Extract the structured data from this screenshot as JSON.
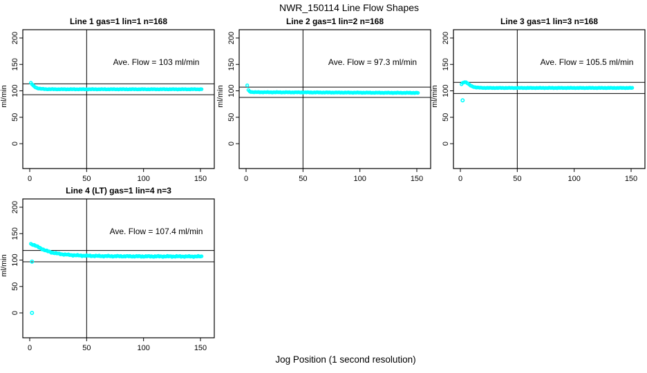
{
  "page": {
    "title": "NWR_150114  Line Flow Shapes",
    "xlabel": "Jog Position (1 second resolution)"
  },
  "chart_data": {
    "type": "scatter",
    "title": "NWR_150114  Line Flow Shapes",
    "xlabel": "Jog Position (1 second resolution)",
    "ylabel": "ml/min",
    "x_ticks": [
      0,
      50,
      100,
      150
    ],
    "y_ticks": [
      0,
      50,
      100,
      150,
      200
    ],
    "xlim": [
      -6,
      162
    ],
    "ylim": [
      -47,
      216
    ],
    "grid": false,
    "legend": "none",
    "point_color": "#00FFFF",
    "line_color": "#000000",
    "vline_x": 50,
    "panels": [
      {
        "title": "Line 1 gas=1 lin=1 n=168",
        "annotation": "Ave. Flow =  103  ml/min",
        "ave_flow": 103,
        "limit_lines": [
          113.3,
          92.7
        ],
        "jitter": 0.5,
        "x_start": 1,
        "x_end": 151,
        "keypoints": [
          [
            1,
            115
          ],
          [
            2,
            112.5
          ],
          [
            3,
            110
          ],
          [
            4,
            108.2
          ],
          [
            5,
            106.8
          ],
          [
            6,
            105.7
          ],
          [
            7,
            104.9
          ],
          [
            8,
            104.4
          ],
          [
            10,
            103.8
          ],
          [
            12,
            103.5
          ],
          [
            15,
            103.2
          ],
          [
            20,
            103.05
          ],
          [
            30,
            103
          ],
          [
            151,
            103
          ]
        ],
        "outliers": []
      },
      {
        "title": "Line 2 gas=1 lin=2 n=168",
        "annotation": "Ave. Flow =  97.3  ml/min",
        "ave_flow": 97.3,
        "limit_lines": [
          107.0,
          87.6
        ],
        "jitter": 0.55,
        "x_start": 1,
        "x_end": 151,
        "keypoints": [
          [
            1,
            110.5
          ],
          [
            2,
            101.5
          ],
          [
            3,
            99
          ],
          [
            4,
            98.2
          ],
          [
            5,
            97.8
          ],
          [
            7,
            97.5
          ],
          [
            10,
            97.4
          ],
          [
            20,
            97.3
          ],
          [
            50,
            97.1
          ],
          [
            90,
            96.7
          ],
          [
            120,
            96.4
          ],
          [
            151,
            96.2
          ]
        ],
        "outliers": []
      },
      {
        "title": "Line 3 gas=1 lin=3 n=168",
        "annotation": "Ave. Flow =  105.5  ml/min",
        "ave_flow": 105.5,
        "limit_lines": [
          116.05,
          94.95
        ],
        "jitter": 0.5,
        "x_start": 1,
        "x_end": 151,
        "keypoints": [
          [
            1,
            112.5
          ],
          [
            2,
            114.8
          ],
          [
            3,
            116.2
          ],
          [
            4,
            116.6
          ],
          [
            5,
            116.2
          ],
          [
            6,
            114.8
          ],
          [
            7,
            113
          ],
          [
            8,
            111.3
          ],
          [
            9,
            109.9
          ],
          [
            10,
            108.8
          ],
          [
            12,
            107.3
          ],
          [
            14,
            106.5
          ],
          [
            17,
            105.9
          ],
          [
            21,
            105.6
          ],
          [
            27,
            105.5
          ],
          [
            151,
            105.5
          ]
        ],
        "outliers": [
          [
            2,
            82
          ]
        ]
      },
      {
        "title": "Line 4 (LT) gas=1 lin=4 n=3",
        "annotation": "Ave. Flow =  107.4  ml/min",
        "ave_flow": 107.4,
        "limit_lines": [
          118.1,
          96.7
        ],
        "jitter": 1.1,
        "x_start": 1,
        "x_end": 151,
        "keypoints": [
          [
            1,
            130.5
          ],
          [
            2,
            130
          ],
          [
            3,
            129.2
          ],
          [
            4,
            128.3
          ],
          [
            5,
            127.3
          ],
          [
            6,
            126.2
          ],
          [
            7,
            125.1
          ],
          [
            8,
            124
          ],
          [
            9,
            122.9
          ],
          [
            10,
            121.9
          ],
          [
            12,
            119.9
          ],
          [
            14,
            118.1
          ],
          [
            16,
            116.6
          ],
          [
            18,
            115.3
          ],
          [
            20,
            114.2
          ],
          [
            23,
            112.9
          ],
          [
            26,
            111.8
          ],
          [
            30,
            110.7
          ],
          [
            34,
            109.9
          ],
          [
            38,
            109.3
          ],
          [
            43,
            108.7
          ],
          [
            48,
            108.3
          ],
          [
            55,
            107.9
          ],
          [
            65,
            107.5
          ],
          [
            80,
            107.2
          ],
          [
            100,
            107
          ],
          [
            151,
            106.8
          ]
        ],
        "outliers": [
          [
            2,
            97
          ],
          [
            2,
            0
          ]
        ]
      }
    ]
  }
}
